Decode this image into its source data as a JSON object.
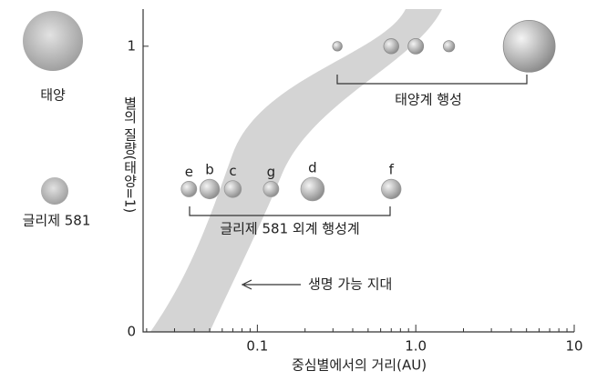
{
  "chart_data": {
    "type": "scatter",
    "xlabel": "중심별에서의 거리(AU)",
    "ylabel": "별의 질량(태양=1)",
    "log_x": true,
    "xlim": [
      0.019,
      10
    ],
    "ylim": [
      0,
      1.13
    ],
    "xticks": [
      0.1,
      {
        "value": 1,
        "label": "1.0"
      },
      10
    ],
    "xminorticks": [
      0.02,
      0.03,
      0.04,
      0.05,
      0.06,
      0.07,
      0.08,
      0.09,
      0.2,
      0.3,
      0.4,
      0.5,
      0.6,
      0.7,
      0.8,
      0.9,
      2,
      3,
      4,
      5,
      6,
      7,
      8,
      9
    ],
    "yticks": [
      0,
      1
    ],
    "series": [
      {
        "name": "태양계 행성",
        "color": "#8a8a8a",
        "x": [
          0.32,
          0.7,
          1.0,
          1.62,
          5.2
        ],
        "values": [
          1,
          1,
          1,
          1,
          1
        ],
        "sizes": [
          0.38,
          0.95,
          1,
          0.53,
          11.2
        ]
      },
      {
        "name": "글리제 581 외계 행성계",
        "color": "#9a9a9a",
        "labels": [
          "e",
          "b",
          "c",
          "g",
          "d",
          "f"
        ],
        "x": [
          0.037,
          0.05,
          0.07,
          0.122,
          0.223,
          0.7
        ],
        "values": [
          0.5,
          0.5,
          0.5,
          0.5,
          0.5,
          0.5
        ],
        "sizes": [
          1.0,
          1.6,
          1.2,
          1.0,
          2.3,
          1.6
        ]
      }
    ],
    "annotations": {
      "zone": "생명 가능 지대",
      "sun": "태양",
      "star": "글리제 581"
    }
  }
}
